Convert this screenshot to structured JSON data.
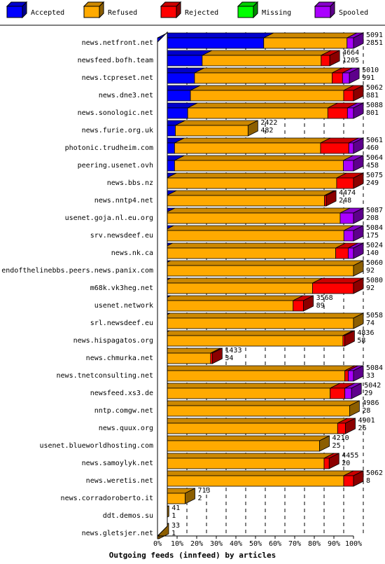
{
  "chart_data": {
    "type": "bar",
    "stacked": true,
    "orientation": "horizontal",
    "title": "Outgoing feeds (innfeed) by articles",
    "legend_position": "top",
    "xlim": [
      0,
      100
    ],
    "x_ticks": [
      "0%",
      "10%",
      "20%",
      "30%",
      "40%",
      "50%",
      "60%",
      "70%",
      "80%",
      "90%",
      "100%"
    ],
    "grid": true,
    "series": [
      {
        "name": "Accepted",
        "color": "#0000ff"
      },
      {
        "name": "Refused",
        "color": "#ffaa00"
      },
      {
        "name": "Rejected",
        "color": "#ff0000"
      },
      {
        "name": "Missing",
        "color": "#00ff00"
      },
      {
        "name": "Spooled",
        "color": "#aa00ff"
      }
    ],
    "rows": [
      {
        "name": "news.netfront.net",
        "offered": "5091",
        "accepted_count": "2851",
        "pct": {
          "accepted": 54.2,
          "refused": 42.5,
          "rejected": 0,
          "missing": 0,
          "spooled": 3.3
        }
      },
      {
        "name": "newsfeed.bofh.team",
        "offered": "4664",
        "accepted_count": "1205",
        "pct": {
          "accepted": 22.8,
          "refused": 60.7,
          "rejected": 4.4,
          "missing": 0,
          "spooled": 0
        }
      },
      {
        "name": "news.tcpreset.net",
        "offered": "5010",
        "accepted_count": "991",
        "pct": {
          "accepted": 18.9,
          "refused": 70.2,
          "rejected": 5.3,
          "missing": 0,
          "spooled": 3.5
        }
      },
      {
        "name": "news.dne3.net",
        "offered": "5062",
        "accepted_count": "881",
        "pct": {
          "accepted": 16.8,
          "refused": 78.2,
          "rejected": 5.0,
          "missing": 0,
          "spooled": 0
        }
      },
      {
        "name": "news.sonologic.net",
        "offered": "5088",
        "accepted_count": "801",
        "pct": {
          "accepted": 15.4,
          "refused": 71.5,
          "rejected": 10.0,
          "missing": 0,
          "spooled": 3.1
        }
      },
      {
        "name": "news.furie.org.uk",
        "offered": "2422",
        "accepted_count": "482",
        "pct": {
          "accepted": 9.1,
          "refused": 37.1,
          "rejected": 0,
          "missing": 0,
          "spooled": 0
        }
      },
      {
        "name": "photonic.trudheim.com",
        "offered": "5061",
        "accepted_count": "460",
        "pct": {
          "accepted": 8.7,
          "refused": 74.5,
          "rejected": 14.4,
          "missing": 0,
          "spooled": 2.4
        }
      },
      {
        "name": "peering.usenet.ovh",
        "offered": "5064",
        "accepted_count": "458",
        "pct": {
          "accepted": 8.7,
          "refused": 86.1,
          "rejected": 0,
          "missing": 0,
          "spooled": 5.2
        }
      },
      {
        "name": "news.bbs.nz",
        "offered": "5075",
        "accepted_count": "249",
        "pct": {
          "accepted": 4.7,
          "refused": 86.7,
          "rejected": 8.6,
          "missing": 0,
          "spooled": 0
        }
      },
      {
        "name": "news.nntp4.net",
        "offered": "4474",
        "accepted_count": "248",
        "pct": {
          "accepted": 4.7,
          "refused": 80.5,
          "rejected": 0.9,
          "missing": 0,
          "spooled": 0
        }
      },
      {
        "name": "usenet.goja.nl.eu.org",
        "offered": "5087",
        "accepted_count": "208",
        "pct": {
          "accepted": 3.9,
          "refused": 89.3,
          "rejected": 0,
          "missing": 0,
          "spooled": 6.8
        }
      },
      {
        "name": "srv.newsdeef.eu",
        "offered": "5084",
        "accepted_count": "175",
        "pct": {
          "accepted": 3.3,
          "refused": 91.8,
          "rejected": 0,
          "missing": 0,
          "spooled": 4.9
        }
      },
      {
        "name": "news.nk.ca",
        "offered": "5024",
        "accepted_count": "140",
        "pct": {
          "accepted": 2.7,
          "refused": 88.2,
          "rejected": 6.4,
          "missing": 0,
          "spooled": 2.7
        }
      },
      {
        "name": "endofthelinebbs.peers.news.panix.com",
        "offered": "5060",
        "accepted_count": "92",
        "pct": {
          "accepted": 1.7,
          "refused": 98.3,
          "rejected": 0,
          "missing": 0,
          "spooled": 0
        }
      },
      {
        "name": "m68k.vk3heg.net",
        "offered": "5080",
        "accepted_count": "92",
        "pct": {
          "accepted": 1.7,
          "refused": 77.4,
          "rejected": 20.9,
          "missing": 0,
          "spooled": 0
        }
      },
      {
        "name": "usenet.network",
        "offered": "3568",
        "accepted_count": "89",
        "pct": {
          "accepted": 1.7,
          "refused": 67.5,
          "rejected": 5.3,
          "missing": 0,
          "spooled": 0
        }
      },
      {
        "name": "srl.newsdeef.eu",
        "offered": "5058",
        "accepted_count": "74",
        "pct": {
          "accepted": 1.4,
          "refused": 98.6,
          "rejected": 0,
          "missing": 0,
          "spooled": 0
        }
      },
      {
        "name": "news.hispagatos.org",
        "offered": "4836",
        "accepted_count": "58",
        "pct": {
          "accepted": 1.1,
          "refused": 93.5,
          "rejected": 0.9,
          "missing": 0,
          "spooled": 0
        }
      },
      {
        "name": "news.chmurka.net",
        "offered": "1433",
        "accepted_count": "34",
        "pct": {
          "accepted": 0.6,
          "refused": 26.5,
          "rejected": 0.9,
          "missing": 0,
          "spooled": 0
        }
      },
      {
        "name": "news.tnetconsulting.net",
        "offered": "5084",
        "accepted_count": "33",
        "pct": {
          "accepted": 0.6,
          "refused": 95.0,
          "rejected": 1.7,
          "missing": 0,
          "spooled": 2.7
        }
      },
      {
        "name": "newsfeed.xs3.de",
        "offered": "5042",
        "accepted_count": "29",
        "pct": {
          "accepted": 0.6,
          "refused": 87.5,
          "rejected": 7.5,
          "missing": 0,
          "spooled": 3.4
        }
      },
      {
        "name": "nntp.comgw.net",
        "offered": "4986",
        "accepted_count": "28",
        "pct": {
          "accepted": 0.5,
          "refused": 97.5,
          "rejected": 0,
          "missing": 0,
          "spooled": 0
        }
      },
      {
        "name": "news.quux.org",
        "offered": "4901",
        "accepted_count": "26",
        "pct": {
          "accepted": 0.5,
          "refused": 91.4,
          "rejected": 4.0,
          "missing": 0,
          "spooled": 0
        }
      },
      {
        "name": "usenet.blueworldhosting.com",
        "offered": "4210",
        "accepted_count": "25",
        "pct": {
          "accepted": 0.5,
          "refused": 82.2,
          "rejected": 0,
          "missing": 0,
          "spooled": 0
        }
      },
      {
        "name": "news.samoylyk.net",
        "offered": "4455",
        "accepted_count": "20",
        "pct": {
          "accepted": 0.4,
          "refused": 84.6,
          "rejected": 2.6,
          "missing": 0,
          "spooled": 0
        }
      },
      {
        "name": "news.weretis.net",
        "offered": "5062",
        "accepted_count": "8",
        "pct": {
          "accepted": 0.2,
          "refused": 94.8,
          "rejected": 5.0,
          "missing": 0,
          "spooled": 0
        }
      },
      {
        "name": "news.corradoroberto.it",
        "offered": "713",
        "accepted_count": "2",
        "pct": {
          "accepted": 0.1,
          "refused": 14.0,
          "rejected": 0,
          "missing": 0,
          "spooled": 0
        }
      },
      {
        "name": "ddt.demos.su",
        "offered": "41",
        "accepted_count": "1",
        "pct": {
          "accepted": 0.1,
          "refused": 0.7,
          "rejected": 0,
          "missing": 0,
          "spooled": 0
        }
      },
      {
        "name": "news.gletsjer.net",
        "offered": "33",
        "accepted_count": "1",
        "pct": {
          "accepted": 0.1,
          "refused": 0.6,
          "rejected": 0,
          "missing": 0,
          "spooled": 0
        }
      }
    ]
  }
}
